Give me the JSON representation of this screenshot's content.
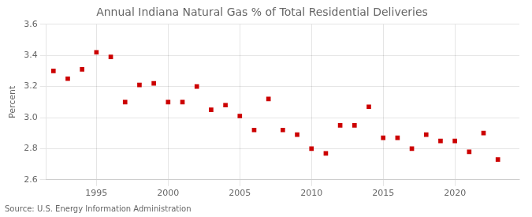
{
  "chart_data": {
    "type": "scatter",
    "title": "Annual Indiana Natural Gas % of Total Residential Deliveries",
    "ylabel": "Percent",
    "annotations": [
      "Source: U.S. Energy Information Administration"
    ],
    "x": [
      1992,
      1993,
      1994,
      1995,
      1996,
      1997,
      1998,
      1999,
      2000,
      2001,
      2002,
      2003,
      2004,
      2005,
      2006,
      2007,
      2008,
      2009,
      2010,
      2011,
      2012,
      2013,
      2014,
      2015,
      2016,
      2017,
      2018,
      2019,
      2020,
      2021,
      2022,
      2023
    ],
    "values": [
      3.3,
      3.25,
      3.31,
      3.42,
      3.39,
      3.1,
      3.21,
      3.22,
      3.1,
      3.1,
      3.2,
      3.05,
      3.08,
      3.01,
      2.92,
      3.12,
      2.92,
      2.89,
      2.8,
      2.77,
      2.95,
      2.95,
      3.07,
      2.87,
      2.87,
      2.8,
      2.89,
      2.85,
      2.85,
      2.78,
      2.9,
      2.73
    ],
    "color": "#cc0000",
    "marker": "square",
    "xlim": [
      1991.5,
      2024.5
    ],
    "xticks": [
      1995,
      2000,
      2005,
      2010,
      2015,
      2020
    ],
    "ylim": [
      2.6,
      3.6
    ],
    "yticks": [
      2.6,
      2.8,
      {
        "value": 3.0,
        "label": "3.0"
      },
      3.2,
      3.4,
      3.6
    ],
    "grid": true
  }
}
